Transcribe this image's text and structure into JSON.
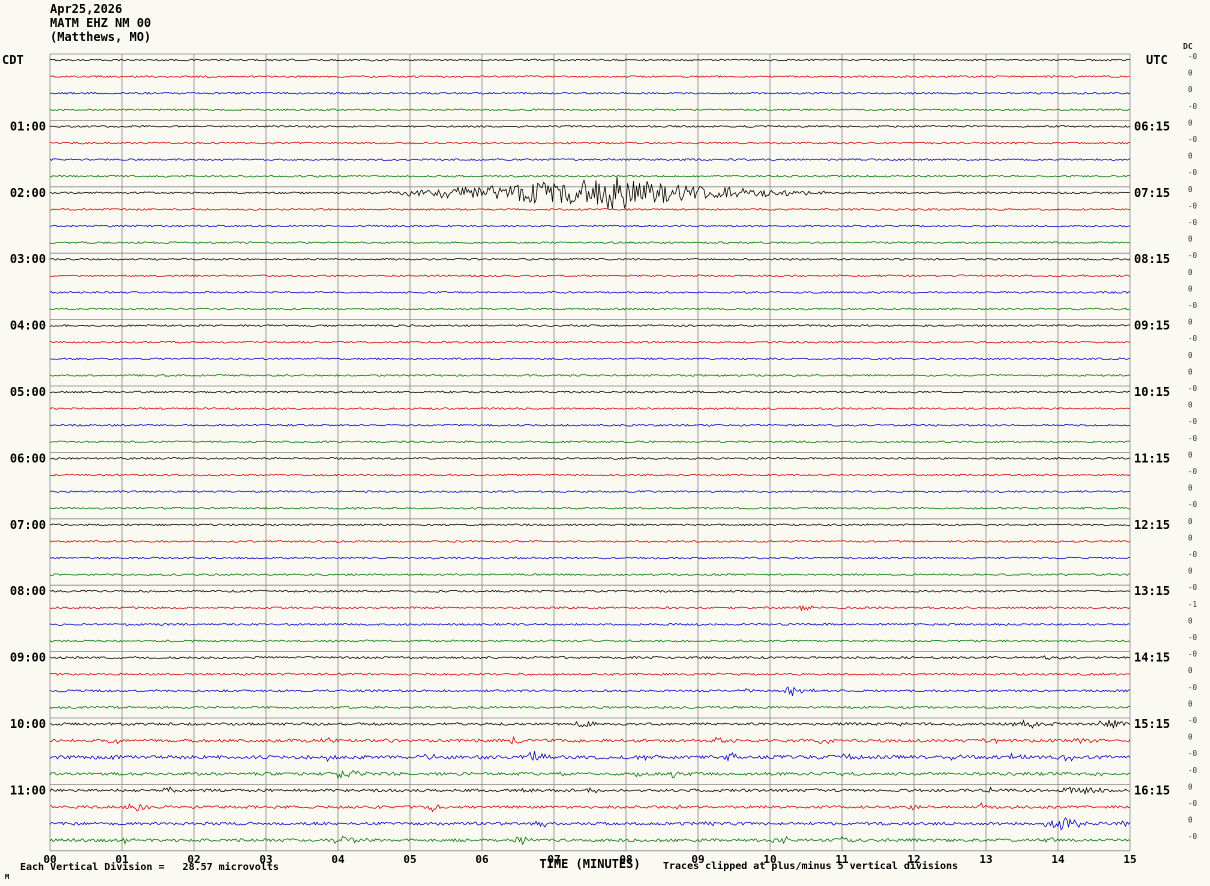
{
  "header": {
    "date": "Apr25,2026",
    "station": "MATM EHZ NM 00",
    "location": "(Matthews, MO)",
    "dc_label": "DC"
  },
  "footer": {
    "scale": "Each Vertical Division =   28.57 microvolts",
    "xlabel": "TIME (MINUTES)",
    "clip_note": "Traces clipped at plus/minus 5 vertical divisions",
    "corner_mark": "M"
  },
  "chart_data": {
    "type": "line",
    "kind": "helicorder-seismogram",
    "title": "MATM EHZ NM 00 (Matthews, MO) Apr25,2026",
    "xlabel": "TIME (MINUTES)",
    "x_range_minutes": [
      0,
      15
    ],
    "minutes_per_line": 15,
    "lines_per_hour": 4,
    "microvolts_per_division": 28.57,
    "clip_divisions": 5,
    "background": "#fbfaf2",
    "grid_color": "#8a8a8a",
    "trace_colors_cycle": [
      "black",
      "red",
      "blue",
      "green"
    ],
    "color_hex": {
      "black": "#000000",
      "red": "#d40000",
      "blue": "#0000cc",
      "green": "#007700"
    },
    "x_ticks": [
      "00",
      "01",
      "02",
      "03",
      "04",
      "05",
      "06",
      "07",
      "08",
      "09",
      "10",
      "11",
      "12",
      "13",
      "14",
      "15"
    ],
    "hour_labels": [
      {
        "left": "CDT",
        "right": "UTC"
      },
      {
        "left": "01:00",
        "right": "06:15"
      },
      {
        "left": "02:00",
        "right": "07:15"
      },
      {
        "left": "03:00",
        "right": "08:15"
      },
      {
        "left": "04:00",
        "right": "09:15"
      },
      {
        "left": "05:00",
        "right": "10:15"
      },
      {
        "left": "06:00",
        "right": "11:15"
      },
      {
        "left": "07:00",
        "right": "12:15"
      },
      {
        "left": "08:00",
        "right": "13:15"
      },
      {
        "left": "09:00",
        "right": "14:15"
      },
      {
        "left": "10:00",
        "right": "15:15"
      },
      {
        "left": "11:00",
        "right": "16:15"
      }
    ],
    "notable_event": {
      "cdt_row": "02:00",
      "utc_row": "07:15",
      "start_minute": 4.2,
      "peak_minute": 7.9,
      "end_minute": 10.8,
      "description": "large high-frequency seismic event on black trace, clipped near plus/minus 5 divisions"
    },
    "rows": [
      {
        "noise": 0.9,
        "dc": "-0",
        "events": []
      },
      {
        "noise": 0.9,
        "dc": "0",
        "events": []
      },
      {
        "noise": 0.9,
        "dc": "0",
        "events": []
      },
      {
        "noise": 0.9,
        "dc": "-0",
        "events": []
      },
      {
        "noise": 0.9,
        "dc": "0",
        "events": []
      },
      {
        "noise": 0.9,
        "dc": "-0",
        "events": []
      },
      {
        "noise": 0.9,
        "dc": "0",
        "events": []
      },
      {
        "noise": 0.9,
        "dc": "-0",
        "events": []
      },
      {
        "noise": 0.9,
        "dc": "0",
        "events": [
          [
            4.2,
            7.9,
            10.8,
            16
          ]
        ]
      },
      {
        "noise": 0.9,
        "dc": "-0",
        "events": []
      },
      {
        "noise": 0.9,
        "dc": "-0",
        "events": []
      },
      {
        "noise": 0.9,
        "dc": "0",
        "events": []
      },
      {
        "noise": 0.9,
        "dc": "-0",
        "events": []
      },
      {
        "noise": 0.9,
        "dc": "0",
        "events": []
      },
      {
        "noise": 0.9,
        "dc": "0",
        "events": []
      },
      {
        "noise": 0.9,
        "dc": "-0",
        "events": []
      },
      {
        "noise": 0.9,
        "dc": "0",
        "events": []
      },
      {
        "noise": 0.9,
        "dc": "-0",
        "events": []
      },
      {
        "noise": 0.9,
        "dc": "0",
        "events": []
      },
      {
        "noise": 0.9,
        "dc": "0",
        "events": []
      },
      {
        "noise": 0.9,
        "dc": "-0",
        "events": []
      },
      {
        "noise": 0.9,
        "dc": "0",
        "events": []
      },
      {
        "noise": 0.9,
        "dc": "-0",
        "events": []
      },
      {
        "noise": 0.9,
        "dc": "-0",
        "events": []
      },
      {
        "noise": 0.9,
        "dc": "0",
        "events": []
      },
      {
        "noise": 0.9,
        "dc": "-0",
        "events": []
      },
      {
        "noise": 0.9,
        "dc": "0",
        "events": []
      },
      {
        "noise": 0.9,
        "dc": "-0",
        "events": []
      },
      {
        "noise": 0.9,
        "dc": "0",
        "events": []
      },
      {
        "noise": 0.9,
        "dc": "0",
        "events": []
      },
      {
        "noise": 0.9,
        "dc": "-0",
        "events": []
      },
      {
        "noise": 0.9,
        "dc": "0",
        "events": []
      },
      {
        "noise": 1.0,
        "dc": "-0",
        "events": []
      },
      {
        "noise": 1.0,
        "dc": "-1",
        "events": [
          [
            10.35,
            10.5,
            10.8,
            4
          ]
        ]
      },
      {
        "noise": 1.0,
        "dc": "0",
        "events": []
      },
      {
        "noise": 1.0,
        "dc": "-0",
        "events": []
      },
      {
        "noise": 1.1,
        "dc": "-0",
        "events": [
          [
            13.7,
            13.85,
            14.1,
            2.5
          ]
        ]
      },
      {
        "noise": 1.1,
        "dc": "0",
        "events": [
          [
            3.6,
            3.75,
            4.05,
            3.5
          ]
        ]
      },
      {
        "noise": 1.1,
        "dc": "-0",
        "events": [
          [
            9.5,
            9.65,
            9.9,
            3
          ],
          [
            10.1,
            10.3,
            10.7,
            5
          ]
        ]
      },
      {
        "noise": 1.1,
        "dc": "0",
        "events": []
      },
      {
        "noise": 1.3,
        "dc": "-0",
        "events": [
          [
            7.25,
            7.4,
            7.7,
            4
          ],
          [
            11.7,
            11.8,
            12.0,
            2.5
          ],
          [
            13.2,
            13.6,
            14.1,
            4
          ],
          [
            14.3,
            14.8,
            15.0,
            5
          ]
        ]
      },
      {
        "noise": 1.5,
        "dc": "0",
        "events": [
          [
            0.7,
            0.85,
            1.1,
            3.5
          ],
          [
            3.7,
            3.85,
            4.1,
            3
          ],
          [
            4.5,
            4.65,
            4.9,
            3
          ],
          [
            6.3,
            6.45,
            6.7,
            3
          ],
          [
            7.2,
            7.35,
            7.6,
            3.5
          ],
          [
            9.1,
            9.25,
            9.5,
            3
          ],
          [
            10.6,
            10.75,
            11.0,
            3.5
          ],
          [
            12.9,
            13.05,
            13.3,
            3.5
          ],
          [
            14.1,
            14.3,
            14.6,
            3.5
          ]
        ]
      },
      {
        "noise": 1.8,
        "dc": "-0",
        "events": [
          [
            0.6,
            0.75,
            1.0,
            3.5
          ],
          [
            3.7,
            3.85,
            4.1,
            3
          ],
          [
            5.1,
            5.25,
            5.5,
            3.5
          ],
          [
            6.4,
            6.7,
            7.1,
            6
          ],
          [
            8.1,
            8.25,
            8.5,
            3.5
          ],
          [
            9.2,
            9.4,
            9.7,
            6
          ],
          [
            10.9,
            11.05,
            11.3,
            3.5
          ],
          [
            12.4,
            12.55,
            12.8,
            3.5
          ],
          [
            13.2,
            13.35,
            13.6,
            3.5
          ],
          [
            13.9,
            14.1,
            14.4,
            5
          ]
        ]
      },
      {
        "noise": 1.5,
        "dc": "-0",
        "events": [
          [
            3.9,
            4.05,
            4.4,
            6
          ],
          [
            6.9,
            7.05,
            7.3,
            3
          ],
          [
            8.0,
            8.15,
            8.4,
            3.5
          ],
          [
            8.5,
            8.65,
            8.9,
            3
          ],
          [
            10.9,
            11.05,
            11.3,
            3
          ],
          [
            14.4,
            14.55,
            14.8,
            2.5
          ]
        ]
      },
      {
        "noise": 1.4,
        "dc": "0",
        "events": [
          [
            1.5,
            1.65,
            1.9,
            3
          ],
          [
            6.4,
            6.55,
            6.8,
            3.5
          ],
          [
            7.4,
            7.55,
            7.8,
            3.5
          ],
          [
            10.4,
            10.55,
            10.8,
            3.5
          ],
          [
            12.9,
            13.05,
            13.3,
            3
          ],
          [
            13.9,
            14.3,
            15.0,
            4.5
          ]
        ]
      },
      {
        "noise": 1.4,
        "dc": "-0",
        "events": [
          [
            1.0,
            1.2,
            1.6,
            4.5
          ],
          [
            5.1,
            5.3,
            5.6,
            5
          ],
          [
            8.6,
            8.75,
            9.0,
            2.5
          ],
          [
            11.8,
            11.95,
            12.2,
            4
          ],
          [
            12.8,
            12.95,
            13.2,
            3
          ]
        ]
      },
      {
        "noise": 1.5,
        "dc": "0",
        "events": [
          [
            6.7,
            6.85,
            7.1,
            4
          ],
          [
            9.0,
            9.15,
            9.4,
            2.5
          ],
          [
            13.7,
            14.1,
            14.6,
            7
          ],
          [
            14.8,
            14.95,
            15.0,
            3
          ]
        ]
      },
      {
        "noise": 1.5,
        "dc": "-0",
        "events": [
          [
            0.9,
            1.05,
            1.3,
            3
          ],
          [
            3.8,
            4.05,
            4.5,
            5
          ],
          [
            6.4,
            6.55,
            6.8,
            4
          ],
          [
            9.8,
            10.1,
            10.6,
            4
          ],
          [
            10.8,
            11.0,
            11.4,
            4
          ],
          [
            13.8,
            13.95,
            14.2,
            3
          ]
        ]
      }
    ]
  }
}
